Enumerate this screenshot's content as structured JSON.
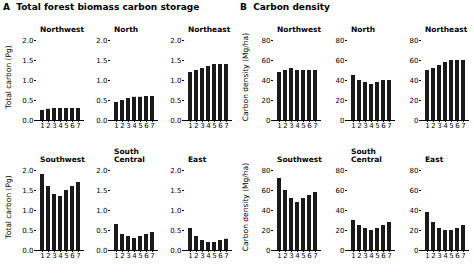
{
  "chart_data": [
    {
      "type": "bar",
      "title": "Northwest",
      "annotations": [
        "A  Total forest biomass carbon storage"
      ],
      "ylabel": "Total carbon (Pg)",
      "categories": [
        "1",
        "2",
        "3",
        "4",
        "5",
        "6",
        "7"
      ],
      "values": [
        0.25,
        0.28,
        0.3,
        0.3,
        0.3,
        0.3,
        0.3
      ],
      "color": "#1a1a1a",
      "ylim": [
        0.0,
        2.0
      ],
      "yticks": [
        {
          "value": 0.0,
          "label": "0.0"
        },
        0.5,
        {
          "value": 1.0,
          "label": "1.0"
        },
        1.5,
        {
          "value": 2.0,
          "label": "2.0"
        }
      ]
    },
    {
      "type": "bar",
      "title": "North",
      "categories": [
        "1",
        "2",
        "3",
        "4",
        "5",
        "6",
        "7"
      ],
      "values": [
        0.45,
        0.5,
        0.55,
        0.58,
        0.58,
        0.6,
        0.6
      ],
      "color": "#1a1a1a",
      "ylim": [
        0.0,
        2.0
      ],
      "yticks": [
        {
          "value": 0.0,
          "label": "0.0"
        },
        0.5,
        {
          "value": 1.0,
          "label": "1.0"
        },
        1.5,
        {
          "value": 2.0,
          "label": "2.0"
        }
      ]
    },
    {
      "type": "bar",
      "title": "Northeast",
      "categories": [
        "1",
        "2",
        "3",
        "4",
        "5",
        "6",
        "7"
      ],
      "values": [
        1.2,
        1.25,
        1.3,
        1.35,
        1.4,
        1.4,
        1.4
      ],
      "color": "#1a1a1a",
      "ylim": [
        0.0,
        2.0
      ],
      "yticks": [
        {
          "value": 0.0,
          "label": "0.0"
        },
        0.5,
        {
          "value": 1.0,
          "label": "1.0"
        },
        1.5,
        {
          "value": 2.0,
          "label": "2.0"
        }
      ]
    },
    {
      "type": "bar",
      "title": "Southwest",
      "ylabel": "Total carbon (Pg)",
      "categories": [
        "1",
        "2",
        "3",
        "4",
        "5",
        "6",
        "7"
      ],
      "values": [
        1.9,
        1.6,
        1.4,
        1.35,
        1.5,
        1.6,
        1.7
      ],
      "color": "#1a1a1a",
      "ylim": [
        0.0,
        2.0
      ],
      "yticks": [
        {
          "value": 0.0,
          "label": "0.0"
        },
        0.5,
        {
          "value": 1.0,
          "label": "1.0"
        },
        1.5,
        {
          "value": 2.0,
          "label": "2.0"
        }
      ]
    },
    {
      "type": "bar",
      "title": "South\nCentral",
      "categories": [
        "1",
        "2",
        "3",
        "4",
        "5",
        "6",
        "7"
      ],
      "values": [
        0.65,
        0.4,
        0.35,
        0.3,
        0.35,
        0.4,
        0.45
      ],
      "color": "#1a1a1a",
      "ylim": [
        0.0,
        2.0
      ],
      "yticks": [
        {
          "value": 0.0,
          "label": "0.0"
        },
        0.5,
        {
          "value": 1.0,
          "label": "1.0"
        },
        1.5,
        {
          "value": 2.0,
          "label": "2.0"
        }
      ]
    },
    {
      "type": "bar",
      "title": "East",
      "categories": [
        "1",
        "2",
        "3",
        "4",
        "5",
        "6",
        "7"
      ],
      "values": [
        0.55,
        0.35,
        0.25,
        0.2,
        0.2,
        0.25,
        0.28
      ],
      "color": "#1a1a1a",
      "ylim": [
        0.0,
        2.0
      ],
      "yticks": [
        {
          "value": 0.0,
          "label": "0.0"
        },
        0.5,
        {
          "value": 1.0,
          "label": "1.0"
        },
        1.5,
        {
          "value": 2.0,
          "label": "2.0"
        }
      ]
    },
    {
      "type": "bar",
      "title": "Northwest",
      "annotations": [
        "B  Carbon density"
      ],
      "ylabel": "Carbon density (Mg/ha)",
      "categories": [
        "1",
        "2",
        "3",
        "4",
        "5",
        "6",
        "7"
      ],
      "values": [
        48,
        50,
        52,
        50,
        50,
        50,
        50
      ],
      "color": "#1a1a1a",
      "ylim": [
        0,
        80
      ],
      "yticks": [
        0,
        20,
        40,
        60,
        80
      ]
    },
    {
      "type": "bar",
      "title": "North",
      "categories": [
        "1",
        "2",
        "3",
        "4",
        "5",
        "6",
        "7"
      ],
      "values": [
        45,
        40,
        38,
        36,
        38,
        40,
        40
      ],
      "color": "#1a1a1a",
      "ylim": [
        0,
        80
      ],
      "yticks": [
        0,
        20,
        40,
        60,
        80
      ]
    },
    {
      "type": "bar",
      "title": "Northeast",
      "categories": [
        "1",
        "2",
        "3",
        "4",
        "5",
        "6",
        "7"
      ],
      "values": [
        50,
        52,
        55,
        58,
        60,
        60,
        60
      ],
      "color": "#1a1a1a",
      "ylim": [
        0,
        80
      ],
      "yticks": [
        0,
        20,
        40,
        60,
        80
      ]
    },
    {
      "type": "bar",
      "title": "Southwest",
      "ylabel": "Carbon density (Mg/ha)",
      "categories": [
        "1",
        "2",
        "3",
        "4",
        "5",
        "6",
        "7"
      ],
      "values": [
        72,
        60,
        52,
        48,
        52,
        55,
        58
      ],
      "color": "#1a1a1a",
      "ylim": [
        0,
        80
      ],
      "yticks": [
        0,
        20,
        40,
        60,
        80
      ]
    },
    {
      "type": "bar",
      "title": "South\nCentral",
      "categories": [
        "1",
        "2",
        "3",
        "4",
        "5",
        "6",
        "7"
      ],
      "values": [
        30,
        25,
        22,
        20,
        22,
        25,
        28
      ],
      "color": "#1a1a1a",
      "ylim": [
        0,
        80
      ],
      "yticks": [
        0,
        20,
        40,
        60,
        80
      ]
    },
    {
      "type": "bar",
      "title": "East",
      "categories": [
        "1",
        "2",
        "3",
        "4",
        "5",
        "6",
        "7"
      ],
      "values": [
        38,
        28,
        22,
        20,
        20,
        22,
        25
      ],
      "color": "#1a1a1a",
      "ylim": [
        0,
        80
      ],
      "yticks": [
        0,
        20,
        40,
        60,
        80
      ]
    }
  ]
}
